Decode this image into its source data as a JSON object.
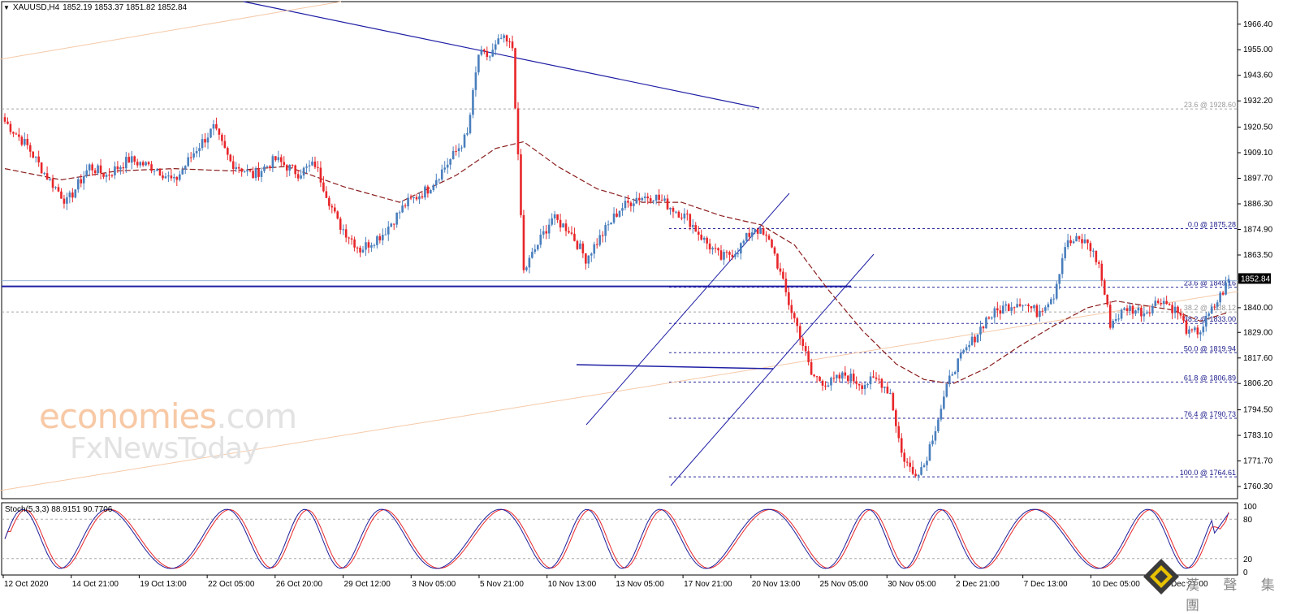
{
  "header": {
    "symbol": "XAUUSD,H4",
    "ohlc": "1852.19 1853.37 1851.82 1852.84"
  },
  "stoch_label": "Stoch(5,3,3) 88.9151 90.7706",
  "watermark": {
    "line1_main": "economies",
    "line1_suffix": ".com",
    "line2": "FxNewsToday"
  },
  "logo_text": "漢 聲 集 團",
  "colors": {
    "bull": "#4a7fbd",
    "bear": "#e8262a",
    "trend_blue": "#1f1fa5",
    "ma": "#8b1e1e",
    "channel_orange": "#f5c9a8",
    "stoch_main": "#1e1e9b",
    "stoch_signal": "#e8262a"
  },
  "chart_data": {
    "type": "candlestick",
    "ylim": [
      1758.5,
      1975
    ],
    "y_ticks": [
      1966.4,
      1955.0,
      1943.6,
      1932.2,
      1920.5,
      1909.1,
      1897.7,
      1886.3,
      1874.9,
      1863.5,
      1840.0,
      1829.0,
      1817.6,
      1806.2,
      1794.5,
      1783.1,
      1771.7,
      1760.3
    ],
    "y_tick_labels": [
      "1966.40",
      "1955.00",
      "1943.60",
      "1932.20",
      "1920.50",
      "1909.10",
      "1897.70",
      "1886.30",
      "1874.90",
      "1863.50",
      "1840.00",
      "1829.00",
      "1817.60",
      "1806.20",
      "1794.50",
      "1783.10",
      "1771.70",
      "1760.30"
    ],
    "current_price": 1852.84,
    "current_price_label": "1852.84",
    "x_labels": [
      "12 Oct 2020",
      "14 Oct 21:00",
      "19 Oct 13:00",
      "22 Oct 05:00",
      "26 Oct 20:00",
      "29 Oct 12:00",
      "3 Nov 05:00",
      "5 Nov 21:00",
      "10 Nov 13:00",
      "13 Nov 05:00",
      "17 Nov 21:00",
      "20 Nov 13:00",
      "25 Nov 05:00",
      "30 Nov 05:00",
      "2 Dec 21:00",
      "7 Dec 13:00",
      "10 Dec 05:00",
      "14 Dec 21:00"
    ],
    "price_path": [
      [
        0,
        1923
      ],
      [
        8,
        1912
      ],
      [
        14,
        1900
      ],
      [
        22,
        1887
      ],
      [
        30,
        1903
      ],
      [
        36,
        1899
      ],
      [
        44,
        1906
      ],
      [
        54,
        1902
      ],
      [
        60,
        1896
      ],
      [
        68,
        1911
      ],
      [
        74,
        1920
      ],
      [
        80,
        1905
      ],
      [
        88,
        1899
      ],
      [
        96,
        1906
      ],
      [
        104,
        1900
      ],
      [
        110,
        1904
      ],
      [
        118,
        1878
      ],
      [
        126,
        1866
      ],
      [
        134,
        1873
      ],
      [
        142,
        1886
      ],
      [
        150,
        1893
      ],
      [
        158,
        1906
      ],
      [
        164,
        1917
      ],
      [
        168,
        1953
      ],
      [
        172,
        1952
      ],
      [
        176,
        1960
      ],
      [
        180,
        1956
      ],
      [
        184,
        1856
      ],
      [
        188,
        1866
      ],
      [
        194,
        1880
      ],
      [
        200,
        1875
      ],
      [
        206,
        1862
      ],
      [
        212,
        1873
      ],
      [
        218,
        1884
      ],
      [
        224,
        1889
      ],
      [
        230,
        1890
      ],
      [
        236,
        1885
      ],
      [
        242,
        1880
      ],
      [
        248,
        1870
      ],
      [
        254,
        1862
      ],
      [
        260,
        1866
      ],
      [
        266,
        1876
      ],
      [
        272,
        1868
      ],
      [
        278,
        1842
      ],
      [
        282,
        1828
      ],
      [
        286,
        1810
      ],
      [
        292,
        1806
      ],
      [
        298,
        1810
      ],
      [
        304,
        1806
      ],
      [
        310,
        1808
      ],
      [
        314,
        1802
      ],
      [
        318,
        1775
      ],
      [
        322,
        1766
      ],
      [
        326,
        1770
      ],
      [
        330,
        1787
      ],
      [
        336,
        1812
      ],
      [
        342,
        1823
      ],
      [
        348,
        1835
      ],
      [
        354,
        1840
      ],
      [
        360,
        1843
      ],
      [
        366,
        1838
      ],
      [
        372,
        1846
      ],
      [
        376,
        1868
      ],
      [
        380,
        1870
      ],
      [
        384,
        1869
      ],
      [
        388,
        1859
      ],
      [
        392,
        1833
      ],
      [
        398,
        1840
      ],
      [
        404,
        1838
      ],
      [
        410,
        1844
      ],
      [
        416,
        1838
      ],
      [
        420,
        1828
      ],
      [
        424,
        1830
      ],
      [
        430,
        1843
      ],
      [
        434,
        1852
      ]
    ],
    "moving_average": [
      [
        0,
        1902
      ],
      [
        20,
        1897
      ],
      [
        40,
        1901
      ],
      [
        60,
        1902
      ],
      [
        80,
        1901
      ],
      [
        100,
        1903
      ],
      [
        120,
        1894
      ],
      [
        140,
        1887
      ],
      [
        160,
        1899
      ],
      [
        174,
        1911
      ],
      [
        184,
        1914
      ],
      [
        196,
        1903
      ],
      [
        210,
        1893
      ],
      [
        226,
        1887
      ],
      [
        240,
        1887
      ],
      [
        254,
        1881
      ],
      [
        268,
        1877
      ],
      [
        280,
        1868
      ],
      [
        292,
        1848
      ],
      [
        304,
        1830
      ],
      [
        316,
        1815
      ],
      [
        326,
        1808
      ],
      [
        336,
        1806
      ],
      [
        348,
        1813
      ],
      [
        360,
        1823
      ],
      [
        372,
        1832
      ],
      [
        384,
        1840
      ],
      [
        394,
        1843
      ],
      [
        404,
        1841
      ],
      [
        414,
        1839
      ],
      [
        424,
        1834
      ],
      [
        434,
        1838
      ]
    ],
    "fibonacci": [
      {
        "label": "23.6 @ 1928.60",
        "value": 1928.6,
        "style": "gray"
      },
      {
        "label": "0.0 @ 1875.28",
        "value": 1875.28,
        "style": "blue"
      },
      {
        "label": "23.6 @ 1849.16",
        "value": 1849.16,
        "style": "blue"
      },
      {
        "label": "38.2 @ 1838.12",
        "value": 1838.12,
        "style": "gray"
      },
      {
        "label": "38.2 @ 1833.00",
        "value": 1833.0,
        "style": "blue"
      },
      {
        "label": "50.0 @ 1819.94",
        "value": 1819.94,
        "style": "blue"
      },
      {
        "label": "61.8 @ 1806.89",
        "value": 1806.89,
        "style": "blue"
      },
      {
        "label": "76.4 @ 1790.73",
        "value": 1790.73,
        "style": "blue"
      },
      {
        "label": "100.0 @ 1764.61",
        "value": 1764.61,
        "style": "blue"
      }
    ],
    "horizontal_support": 1849.5,
    "stochastic": {
      "ylim": [
        0,
        100
      ],
      "levels": [
        80,
        20
      ],
      "y_tick_labels": [
        "100",
        "80",
        "20",
        "0"
      ],
      "main_last": 88.9151,
      "signal_last": 90.7706
    }
  }
}
